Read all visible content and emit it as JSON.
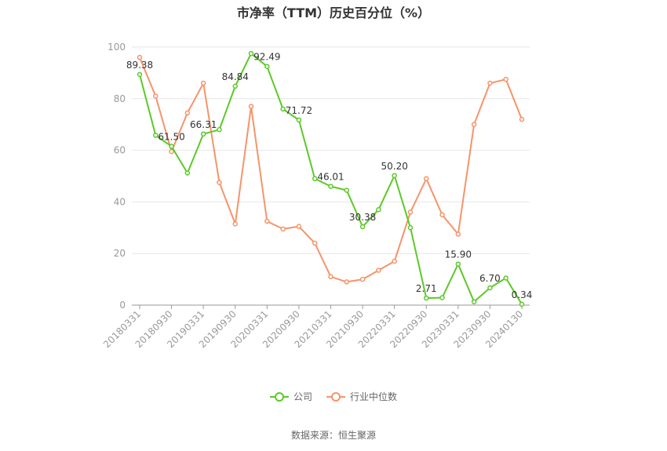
{
  "chart_data": {
    "type": "line",
    "title": "市净率（TTM）历史百分位（%）",
    "xlabel": "",
    "ylabel": "",
    "ylim": [
      0,
      100
    ],
    "yticks": [
      0,
      20,
      40,
      60,
      80,
      100
    ],
    "grid": true,
    "legend": "bottom",
    "x_labels": [
      "20180331",
      "20180930",
      "20190331",
      "20190930",
      "20200331",
      "20200930",
      "20210331",
      "20210930",
      "20220331",
      "20220930",
      "20230331",
      "20230930",
      "20240130"
    ],
    "x_label_positions": [
      0,
      2,
      4,
      6,
      8,
      10,
      12,
      14,
      16,
      18,
      20,
      22,
      24
    ],
    "series": [
      {
        "name": "公司",
        "color": "#5cc928",
        "values": [
          89.38,
          65.8,
          61.5,
          51.2,
          66.31,
          68.0,
          84.84,
          97.5,
          92.49,
          76.0,
          71.72,
          49.0,
          46.01,
          44.5,
          30.38,
          37.0,
          50.2,
          30.0,
          2.71,
          2.9,
          15.9,
          1.3,
          6.7,
          10.5,
          0.34
        ],
        "labels": {
          "0": "89.38",
          "2": "61.50",
          "4": "66.31",
          "6": "84.84",
          "8": "92.49",
          "10": "71.72",
          "12": "46.01",
          "14": "30.38",
          "16": "50.20",
          "18": "2.71",
          "20": "15.90",
          "22": "6.70",
          "24": "0.34"
        }
      },
      {
        "name": "行业中位数",
        "color": "#f5946a",
        "values": [
          96.0,
          81.0,
          59.5,
          74.5,
          86.0,
          47.5,
          31.5,
          77.0,
          32.5,
          29.5,
          30.5,
          24.0,
          11.0,
          9.0,
          10.0,
          13.5,
          17.0,
          36.0,
          49.0,
          35.0,
          27.5,
          70.0,
          86.0,
          87.5,
          72.0
        ]
      }
    ]
  },
  "source": "数据来源：恒生聚源"
}
